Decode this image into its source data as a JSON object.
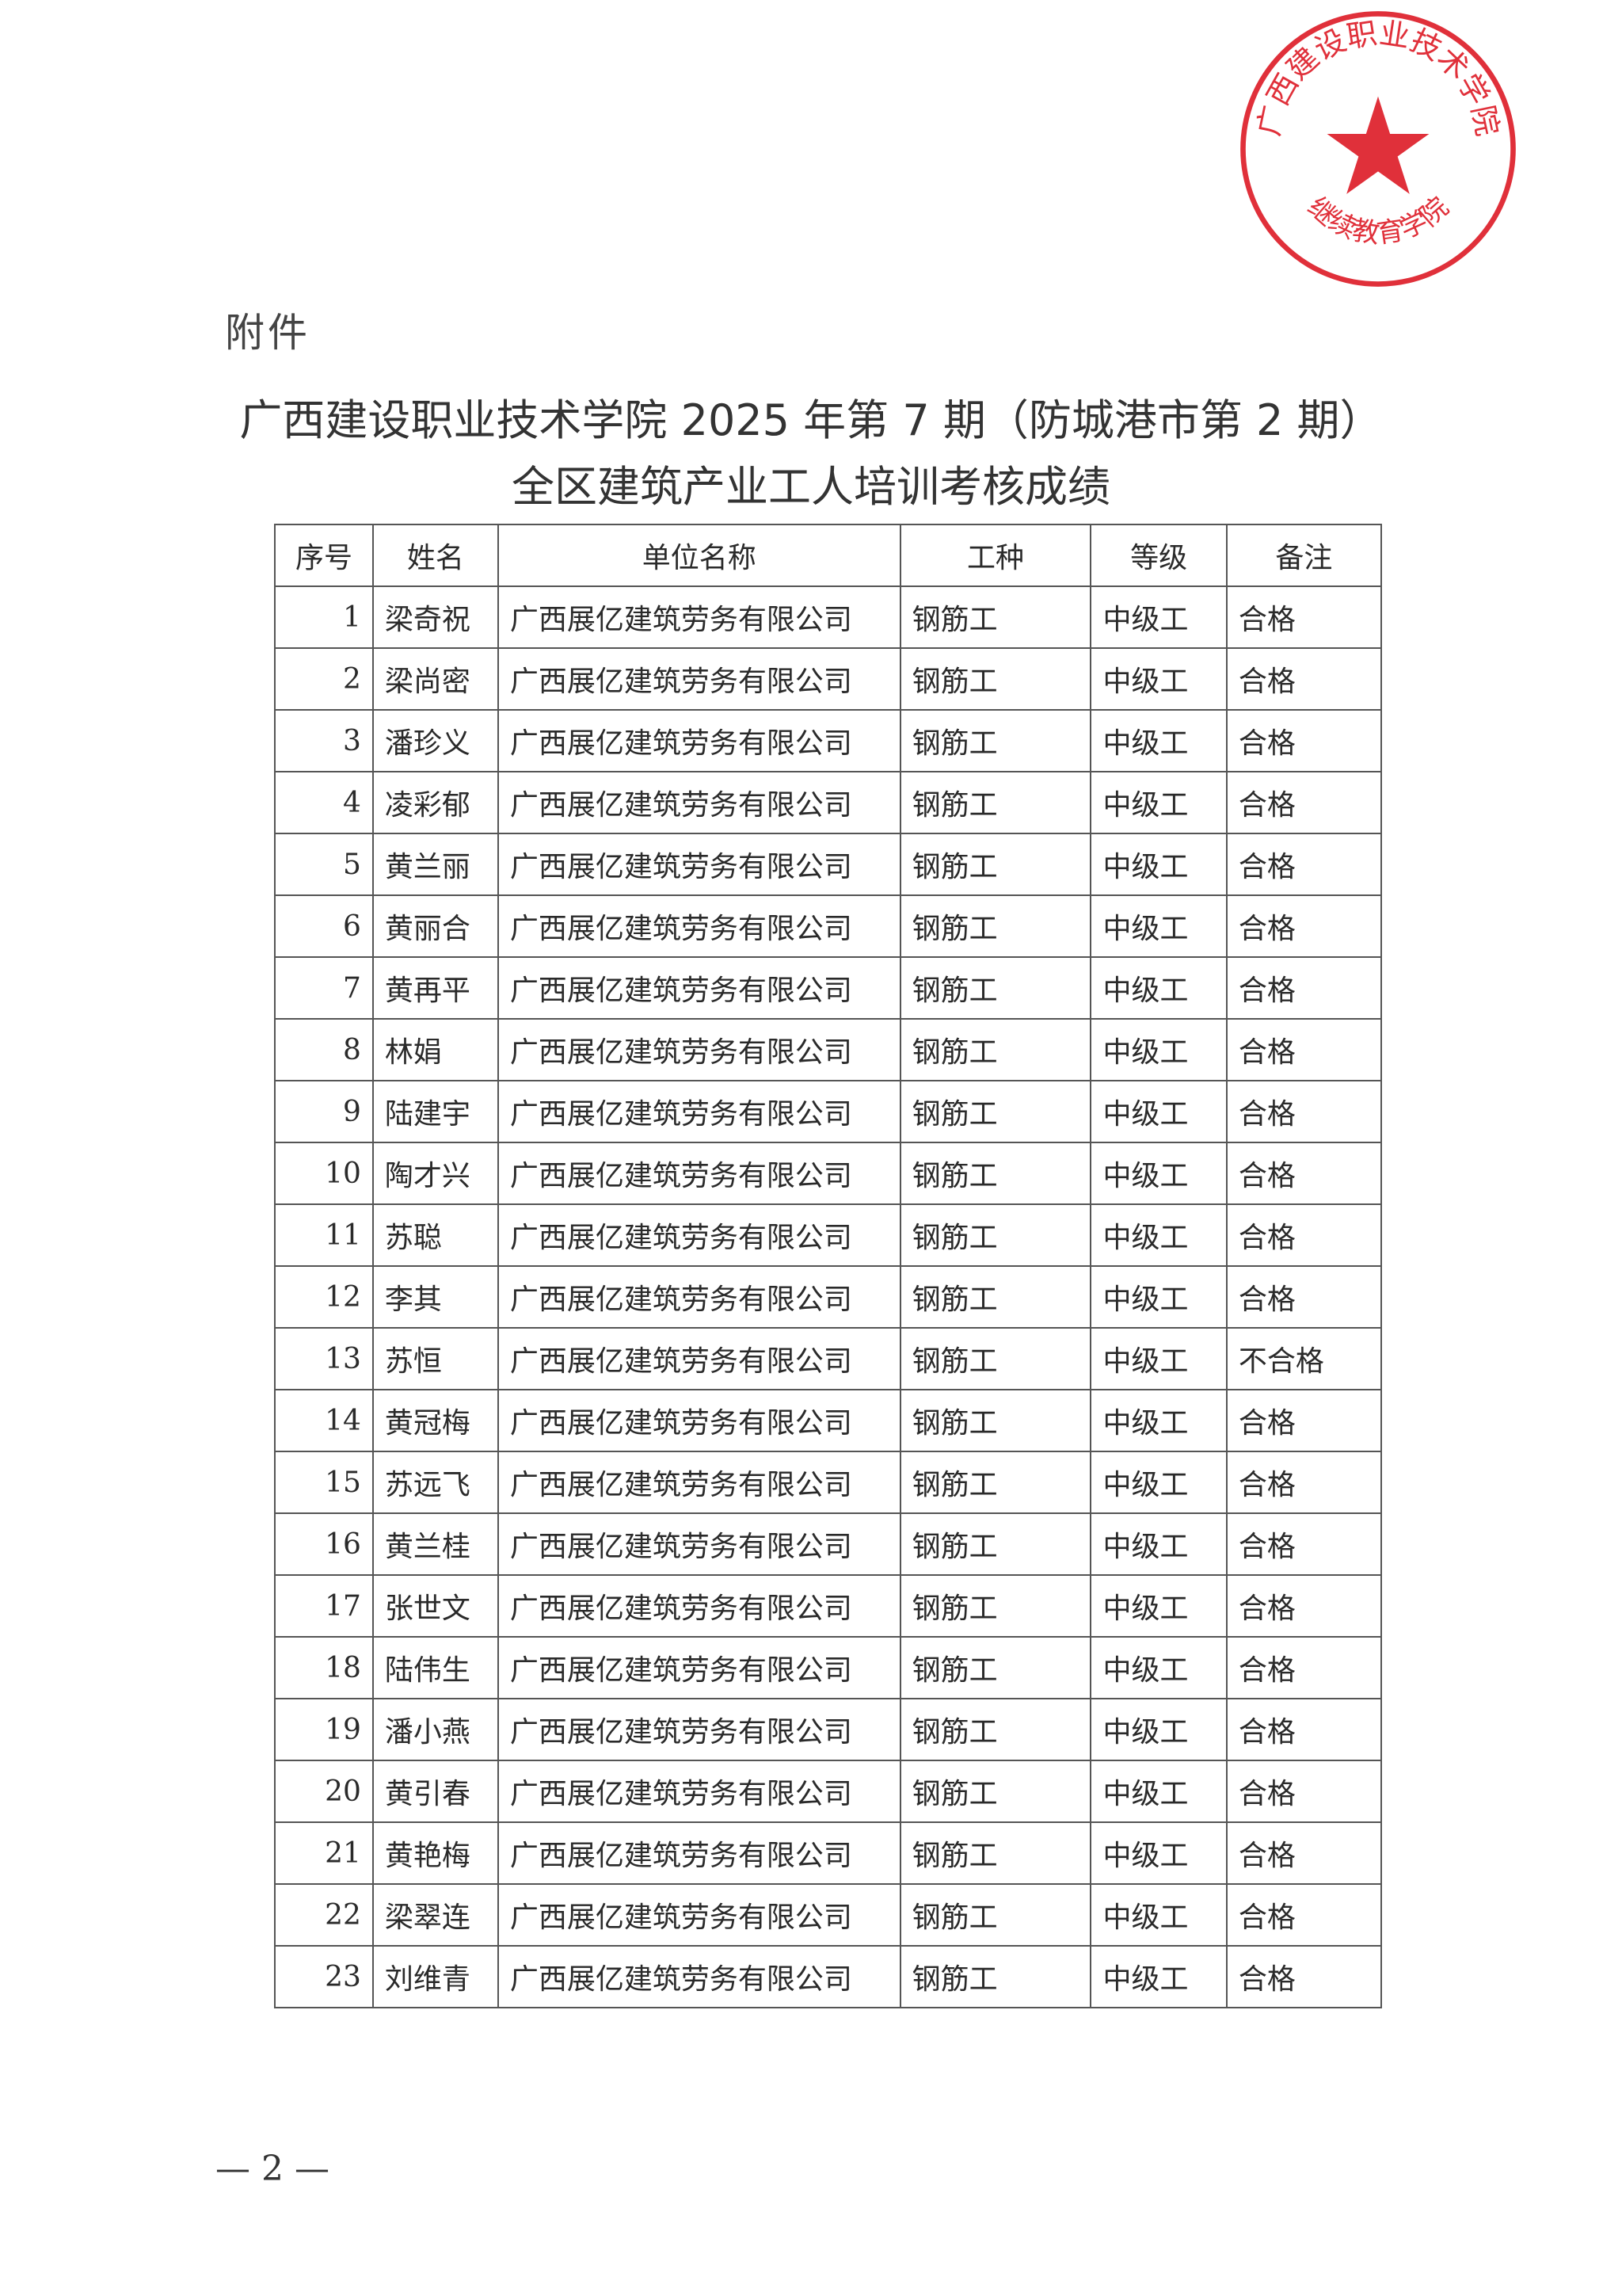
{
  "annex_label": "附件",
  "title_line1": "广西建设职业技术学院 2025 年第 7 期（防城港市第 2 期）",
  "title_line2": "全区建筑产业工人培训考核成绩",
  "table": {
    "headers": [
      "序号",
      "姓名",
      "单位名称",
      "工种",
      "等级",
      "备注"
    ],
    "rows": [
      [
        "1",
        "梁奇祝",
        "广西展亿建筑劳务有限公司",
        "钢筋工",
        "中级工",
        "合格"
      ],
      [
        "2",
        "梁尚密",
        "广西展亿建筑劳务有限公司",
        "钢筋工",
        "中级工",
        "合格"
      ],
      [
        "3",
        "潘珍义",
        "广西展亿建筑劳务有限公司",
        "钢筋工",
        "中级工",
        "合格"
      ],
      [
        "4",
        "凌彩郁",
        "广西展亿建筑劳务有限公司",
        "钢筋工",
        "中级工",
        "合格"
      ],
      [
        "5",
        "黄兰丽",
        "广西展亿建筑劳务有限公司",
        "钢筋工",
        "中级工",
        "合格"
      ],
      [
        "6",
        "黄丽合",
        "广西展亿建筑劳务有限公司",
        "钢筋工",
        "中级工",
        "合格"
      ],
      [
        "7",
        "黄再平",
        "广西展亿建筑劳务有限公司",
        "钢筋工",
        "中级工",
        "合格"
      ],
      [
        "8",
        "林娟",
        "广西展亿建筑劳务有限公司",
        "钢筋工",
        "中级工",
        "合格"
      ],
      [
        "9",
        "陆建宇",
        "广西展亿建筑劳务有限公司",
        "钢筋工",
        "中级工",
        "合格"
      ],
      [
        "10",
        "陶才兴",
        "广西展亿建筑劳务有限公司",
        "钢筋工",
        "中级工",
        "合格"
      ],
      [
        "11",
        "苏聪",
        "广西展亿建筑劳务有限公司",
        "钢筋工",
        "中级工",
        "合格"
      ],
      [
        "12",
        "李其",
        "广西展亿建筑劳务有限公司",
        "钢筋工",
        "中级工",
        "合格"
      ],
      [
        "13",
        "苏恒",
        "广西展亿建筑劳务有限公司",
        "钢筋工",
        "中级工",
        "不合格"
      ],
      [
        "14",
        "黄冠梅",
        "广西展亿建筑劳务有限公司",
        "钢筋工",
        "中级工",
        "合格"
      ],
      [
        "15",
        "苏远飞",
        "广西展亿建筑劳务有限公司",
        "钢筋工",
        "中级工",
        "合格"
      ],
      [
        "16",
        "黄兰桂",
        "广西展亿建筑劳务有限公司",
        "钢筋工",
        "中级工",
        "合格"
      ],
      [
        "17",
        "张世文",
        "广西展亿建筑劳务有限公司",
        "钢筋工",
        "中级工",
        "合格"
      ],
      [
        "18",
        "陆伟生",
        "广西展亿建筑劳务有限公司",
        "钢筋工",
        "中级工",
        "合格"
      ],
      [
        "19",
        "潘小燕",
        "广西展亿建筑劳务有限公司",
        "钢筋工",
        "中级工",
        "合格"
      ],
      [
        "20",
        "黄引春",
        "广西展亿建筑劳务有限公司",
        "钢筋工",
        "中级工",
        "合格"
      ],
      [
        "21",
        "黄艳梅",
        "广西展亿建筑劳务有限公司",
        "钢筋工",
        "中级工",
        "合格"
      ],
      [
        "22",
        "梁翠连",
        "广西展亿建筑劳务有限公司",
        "钢筋工",
        "中级工",
        "合格"
      ],
      [
        "23",
        "刘维青",
        "广西展亿建筑劳务有限公司",
        "钢筋工",
        "中级工",
        "合格"
      ]
    ]
  },
  "stamp": {
    "outer_text": "广西建设职业技术学院",
    "inner_text": "继续教育学院",
    "color": "#e0303a"
  },
  "page_number": "— 2 —"
}
